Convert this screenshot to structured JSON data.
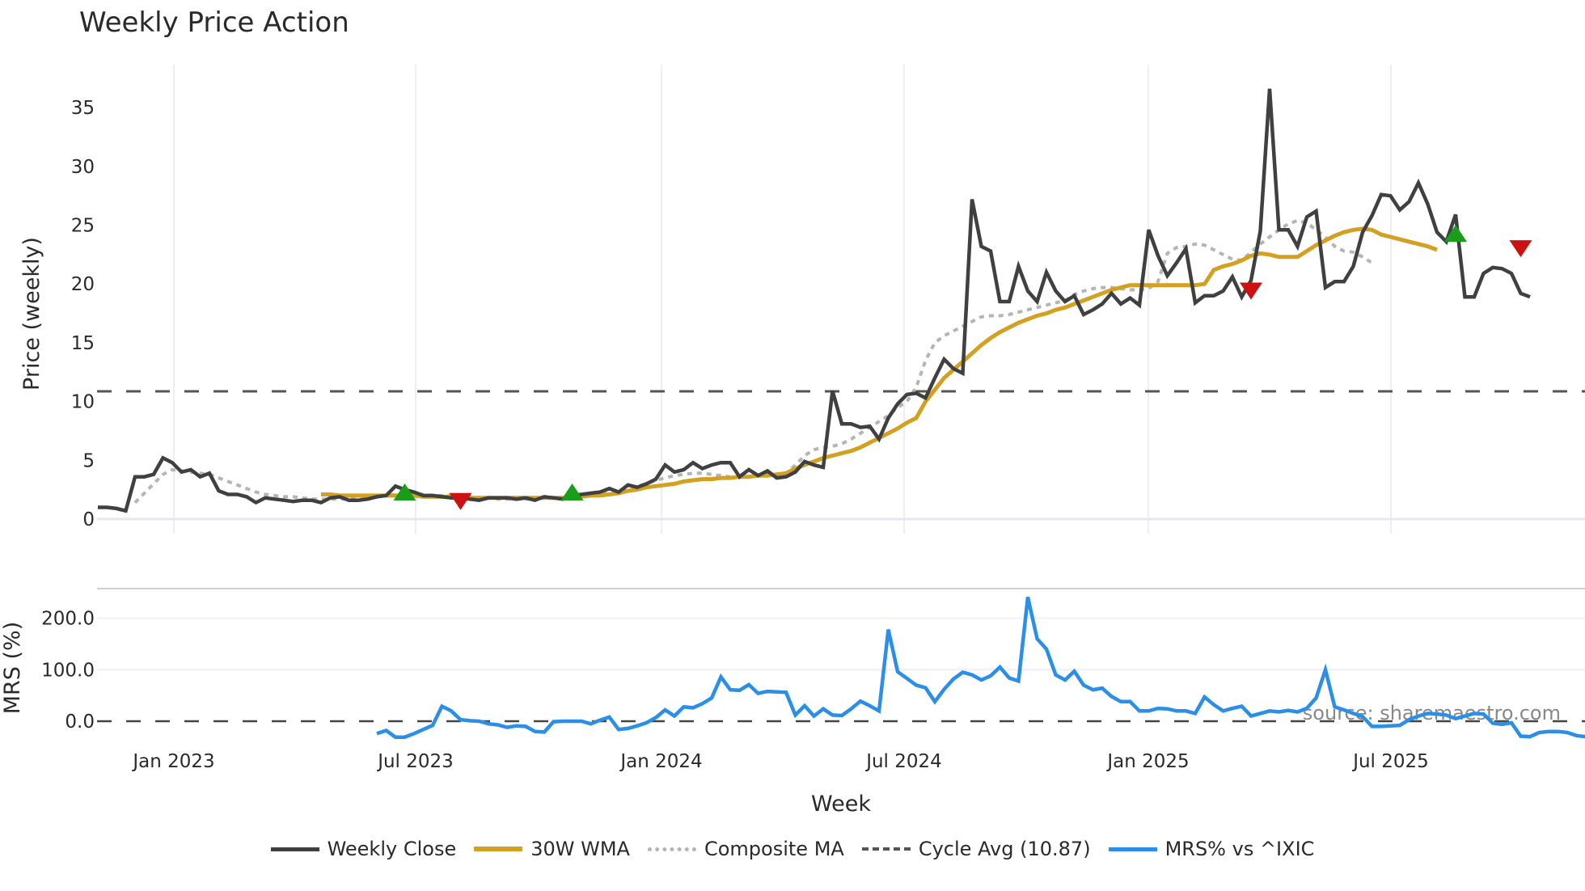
{
  "title": "Weekly Price Action",
  "source_note": "source: sharemaestro.com",
  "legend": [
    {
      "label": "Weekly Close",
      "color": "#404040",
      "style": "solid"
    },
    {
      "label": "30W WMA",
      "color": "#d4a020",
      "style": "solid"
    },
    {
      "label": "Composite MA",
      "color": "#b0b0b0",
      "style": "dotted"
    },
    {
      "label": "Cycle Avg (10.87)",
      "color": "#555555",
      "style": "dashed"
    },
    {
      "label": "MRS% vs ^IXIC",
      "color": "#2b8fe8",
      "style": "solid"
    }
  ],
  "chart_data": [
    {
      "type": "line",
      "title": "Weekly Price Action",
      "xlabel": "Week",
      "ylabel": "Price (weekly)",
      "ylim": [
        0,
        38
      ],
      "yticks": [
        0,
        5,
        10,
        15,
        20,
        25,
        30,
        35
      ],
      "xtick_labels": [
        "Jan 2023",
        "Jul 2023",
        "Jan 2024",
        "Jul 2024",
        "Jan 2025",
        "Jul 2025"
      ],
      "grid": true,
      "reference_lines": [
        {
          "name": "Cycle Avg",
          "value": 10.87,
          "style": "dashed"
        }
      ],
      "x_start": "2022-11-07",
      "x_step": "1 week",
      "series": [
        {
          "name": "Weekly Close",
          "values": [
            1.0,
            1.0,
            0.9,
            0.7,
            3.6,
            3.6,
            3.8,
            5.2,
            4.8,
            4.0,
            4.2,
            3.6,
            3.9,
            2.4,
            2.1,
            2.1,
            1.9,
            1.4,
            1.8,
            1.7,
            1.6,
            1.5,
            1.6,
            1.6,
            1.4,
            1.8,
            1.9,
            1.6,
            1.6,
            1.7,
            1.9,
            2.0,
            2.8,
            2.5,
            2.3,
            2.0,
            2.0,
            1.9,
            1.8,
            1.8,
            1.7,
            1.6,
            1.8,
            1.8,
            1.8,
            1.7,
            1.8,
            1.6,
            1.9,
            1.8,
            1.7,
            2.0,
            2.1,
            2.2,
            2.3,
            2.6,
            2.3,
            2.9,
            2.7,
            3.0,
            3.4,
            4.6,
            4.0,
            4.2,
            4.8,
            4.3,
            4.6,
            4.8,
            4.8,
            3.6,
            4.2,
            3.7,
            4.1,
            3.5,
            3.6,
            4.0,
            4.9,
            4.6,
            4.4,
            10.9,
            8.1,
            8.1,
            7.8,
            7.9,
            6.8,
            8.6,
            9.8,
            10.6,
            10.7,
            10.3,
            12.0,
            13.6,
            12.8,
            12.4,
            27.2,
            23.2,
            22.8,
            18.5,
            18.5,
            21.5,
            19.4,
            18.5,
            21.0,
            19.4,
            18.5,
            19.0,
            17.4,
            17.8,
            18.3,
            19.2,
            18.3,
            18.8,
            18.2,
            24.6,
            22.4,
            20.7,
            21.8,
            23.0,
            18.4,
            19.0,
            19.0,
            19.4,
            20.6,
            18.9,
            20.3,
            24.5,
            36.6,
            24.6,
            24.6,
            23.2,
            25.7,
            26.2,
            19.7,
            20.2,
            20.2,
            21.5,
            24.4,
            25.8,
            27.6,
            27.5,
            26.3,
            27.0,
            28.6,
            26.8,
            24.4,
            23.6,
            25.9,
            18.9,
            18.9,
            20.9,
            21.4,
            21.3,
            20.9,
            19.2,
            18.9
          ]
        },
        {
          "name": "30W WMA",
          "values": [
            null,
            null,
            null,
            null,
            null,
            null,
            null,
            null,
            null,
            null,
            null,
            null,
            null,
            null,
            null,
            null,
            null,
            null,
            null,
            null,
            null,
            null,
            null,
            null,
            2.1,
            2.1,
            2.0,
            2.0,
            2.0,
            2.0,
            2.0,
            2.0,
            2.0,
            2.0,
            2.0,
            1.9,
            1.9,
            1.9,
            1.9,
            1.9,
            1.8,
            1.8,
            1.8,
            1.8,
            1.8,
            1.8,
            1.8,
            1.8,
            1.8,
            1.8,
            1.8,
            1.9,
            1.9,
            2.0,
            2.0,
            2.1,
            2.2,
            2.4,
            2.5,
            2.7,
            2.8,
            2.9,
            3.0,
            3.2,
            3.3,
            3.4,
            3.4,
            3.5,
            3.5,
            3.6,
            3.6,
            3.7,
            3.7,
            3.8,
            3.9,
            4.3,
            4.6,
            4.9,
            5.2,
            5.4,
            5.6,
            5.8,
            6.1,
            6.5,
            6.9,
            7.3,
            7.7,
            8.2,
            8.6,
            10.0,
            11.0,
            12.0,
            12.7,
            13.4,
            14.1,
            14.8,
            15.4,
            15.9,
            16.3,
            16.7,
            17.0,
            17.3,
            17.5,
            17.8,
            18.0,
            18.3,
            18.6,
            18.9,
            19.2,
            19.5,
            19.7,
            19.9,
            19.9,
            19.9,
            19.9,
            19.9,
            19.9,
            19.9,
            19.9,
            20.0,
            21.2,
            21.5,
            21.7,
            22.0,
            22.4,
            22.6,
            22.5,
            22.3,
            22.3,
            22.3,
            22.8,
            23.3,
            23.7,
            24.1,
            24.4,
            24.6,
            24.7,
            24.6,
            24.2,
            24.0,
            23.8,
            23.6,
            23.4,
            23.2,
            22.9
          ]
        },
        {
          "name": "Composite MA",
          "values": [
            null,
            null,
            null,
            null,
            1.4,
            2.2,
            3.0,
            3.8,
            4.2,
            4.1,
            4.0,
            3.9,
            3.8,
            3.5,
            3.2,
            2.9,
            2.6,
            2.3,
            2.1,
            2.0,
            1.9,
            1.9,
            1.8,
            1.7,
            1.7,
            1.7,
            1.7,
            1.7,
            1.8,
            1.8,
            1.9,
            2.0,
            2.1,
            2.1,
            2.1,
            2.1,
            2.0,
            2.0,
            2.0,
            1.9,
            1.9,
            1.8,
            1.8,
            1.7,
            1.7,
            1.7,
            1.7,
            1.7,
            1.8,
            1.8,
            1.8,
            1.9,
            2.0,
            2.1,
            2.2,
            2.3,
            2.4,
            2.6,
            2.8,
            3.0,
            3.3,
            3.5,
            3.7,
            3.8,
            3.9,
            3.9,
            3.8,
            3.7,
            3.6,
            3.6,
            3.6,
            3.7,
            3.8,
            3.8,
            3.9,
            4.6,
            5.4,
            5.9,
            6.1,
            6.2,
            6.4,
            6.8,
            7.3,
            7.8,
            8.3,
            8.8,
            9.5,
            10.0,
            11.2,
            13.5,
            15.0,
            15.6,
            16.0,
            16.4,
            16.8,
            17.2,
            17.3,
            17.3,
            17.4,
            17.6,
            17.8,
            18.0,
            18.2,
            18.4,
            18.6,
            19.1,
            19.4,
            19.6,
            19.7,
            19.7,
            19.6,
            19.5,
            19.5,
            19.6,
            20.2,
            22.6,
            23.1,
            23.2,
            23.4,
            23.3,
            22.9,
            22.5,
            22.1,
            22.0,
            22.7,
            23.4,
            24.0,
            24.6,
            25.1,
            25.4,
            25.2,
            24.6,
            24.0,
            23.2,
            22.8,
            22.7,
            22.3,
            21.8
          ]
        },
        {
          "name": "Buy signals",
          "marker": "triangle-up",
          "color": "#1a9e1a",
          "points": [
            {
              "week": 33,
              "value": 2.2
            },
            {
              "week": 51,
              "value": 2.2
            },
            {
              "week": 146,
              "value": 24.2
            }
          ]
        },
        {
          "name": "Sell signals",
          "marker": "triangle-down",
          "color": "#cc1111",
          "points": [
            {
              "week": 39,
              "value": 1.6
            },
            {
              "week": 124,
              "value": 19.5
            },
            {
              "week": 153,
              "value": 23.1
            }
          ]
        }
      ]
    },
    {
      "type": "line",
      "title": "",
      "xlabel": "Week",
      "ylabel": "MRS (%)",
      "ylim": [
        -50,
        260
      ],
      "yticks": [
        0.0,
        100.0,
        200.0
      ],
      "ytick_labels": [
        "0.0",
        "100.0",
        "200.0"
      ],
      "xtick_labels": [
        "Jan 2023",
        "Jul 2023",
        "Jan 2024",
        "Jul 2024",
        "Jan 2025",
        "Jul 2025"
      ],
      "reference_lines": [
        {
          "name": "Zero",
          "value": 0,
          "style": "dashed"
        }
      ],
      "series": [
        {
          "name": "MRS% vs ^IXIC",
          "start_week": 30,
          "values": [
            -24,
            -18,
            -31,
            -31,
            -24,
            -16,
            -8,
            29,
            20,
            3,
            1,
            0,
            -5,
            -7,
            -12,
            -9,
            -10,
            -20,
            -21,
            -1,
            0,
            0,
            0,
            -5,
            2,
            8,
            -16,
            -14,
            -9,
            -3,
            7,
            22,
            10,
            28,
            26,
            34,
            45,
            86,
            61,
            60,
            71,
            54,
            58,
            57,
            56,
            12,
            30,
            10,
            24,
            12,
            11,
            24,
            39,
            30,
            20,
            178,
            96,
            83,
            70,
            65,
            38,
            62,
            82,
            95,
            90,
            80,
            88,
            105,
            84,
            78,
            241,
            160,
            140,
            90,
            80,
            97,
            70,
            61,
            64,
            48,
            38,
            38,
            20,
            20,
            25,
            24,
            20,
            20,
            15,
            47,
            32,
            20,
            25,
            29,
            10,
            15,
            20,
            18,
            21,
            18,
            25,
            45,
            100,
            28,
            22,
            15,
            9,
            -10,
            -10,
            -9,
            -8,
            3,
            10,
            15,
            14,
            12,
            5,
            10,
            15,
            14,
            -4,
            -6,
            -3,
            -29,
            -30,
            -22,
            -20,
            -20,
            -22,
            -28,
            -30
          ]
        }
      ]
    }
  ]
}
